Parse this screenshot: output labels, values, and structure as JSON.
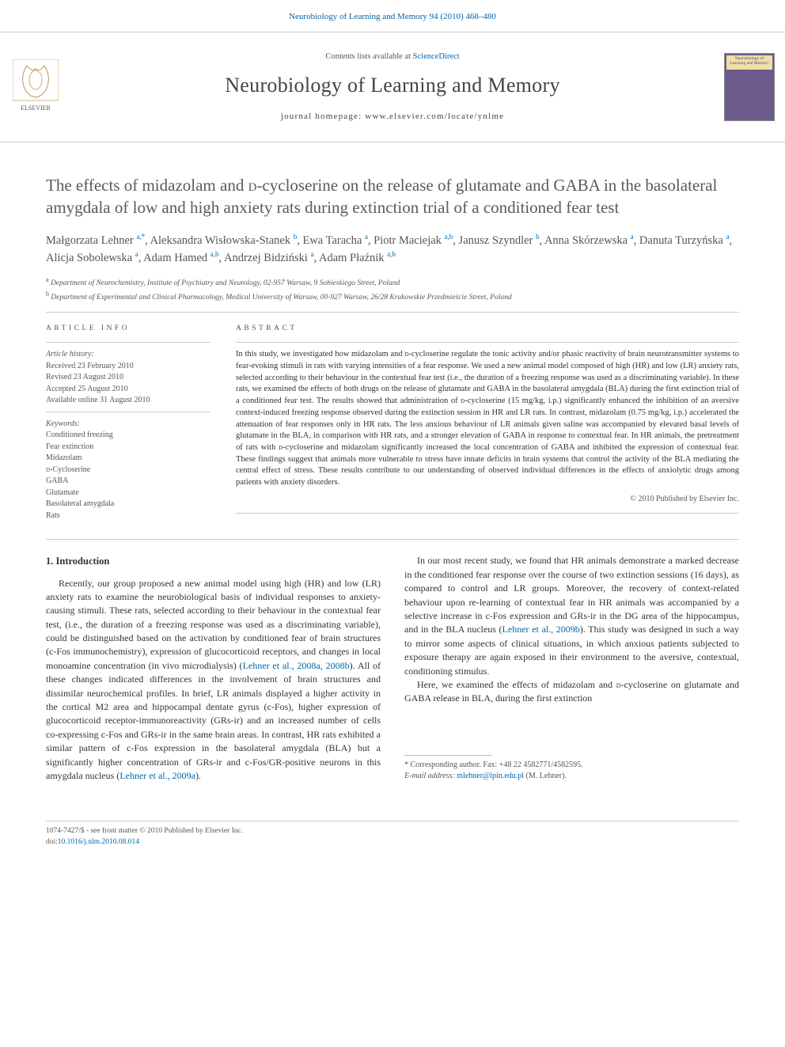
{
  "citation": "Neurobiology of Learning and Memory 94 (2010) 468–480",
  "banner": {
    "contents_prefix": "Contents lists available at ",
    "contents_link": "ScienceDirect",
    "journal": "Neurobiology of Learning and Memory",
    "homepage": "journal homepage: www.elsevier.com/locate/ynlme",
    "cover_text": "Neurobiology of Learning and Memory"
  },
  "title": "The effects of midazolam and D-cycloserine on the release of glutamate and GABA in the basolateral amygdala of low and high anxiety rats during extinction trial of a conditioned fear test",
  "authors_html": "Małgorzata Lehner <sup>a,*</sup>, Aleksandra Wisłowska-Stanek <sup>b</sup>, Ewa Taracha <sup>a</sup>, Piotr Maciejak <sup>a,b</sup>, Janusz Szyndler <sup>b</sup>, Anna Skórzewska <sup>a</sup>, Danuta Turzyńska <sup>a</sup>, Alicja Sobolewska <sup>a</sup>, Adam Hamed <sup>a,b</sup>, Andrzej Bidziński <sup>a</sup>, Adam Płaźnik <sup>a,b</sup>",
  "affiliations": {
    "a": "Department of Neurochemistry, Institute of Psychiatry and Neurology, 02-957 Warsaw, 9 Sobieskiego Street, Poland",
    "b": "Department of Experimental and Clinical Pharmacology, Medical University of Warsaw, 00-927 Warsaw, 26/28 Krakowskie Przedmieście Street, Poland"
  },
  "article_info": {
    "heading": "ARTICLE INFO",
    "history_label": "Article history:",
    "history": [
      "Received 23 February 2010",
      "Revised 23 August 2010",
      "Accepted 25 August 2010",
      "Available online 31 August 2010"
    ],
    "keywords_label": "Keywords:",
    "keywords": [
      "Conditioned freezing",
      "Fear extinction",
      "Midazolam",
      "D-Cycloserine",
      "GABA",
      "Glutamate",
      "Basolateral amygdala",
      "Rats"
    ]
  },
  "abstract": {
    "heading": "ABSTRACT",
    "text": "In this study, we investigated how midazolam and D-cycloserine regulate the tonic activity and/or phasic reactivity of brain neurotransmitter systems to fear-evoking stimuli in rats with varying intensities of a fear response. We used a new animal model composed of high (HR) and low (LR) anxiety rats, selected according to their behaviour in the contextual fear test (i.e., the duration of a freezing response was used as a discriminating variable). In these rats, we examined the effects of both drugs on the release of glutamate and GABA in the basolateral amygdala (BLA) during the first extinction trial of a conditioned fear test. The results showed that administration of D-cycloserine (15 mg/kg, i.p.) significantly enhanced the inhibition of an aversive context-induced freezing response observed during the extinction session in HR and LR rats. In contrast, midazolam (0.75 mg/kg, i.p.) accelerated the attenuation of fear responses only in HR rats. The less anxious behaviour of LR animals given saline was accompanied by elevated basal levels of glutamate in the BLA, in comparison with HR rats, and a stronger elevation of GABA in response to contextual fear. In HR animals, the pretreatment of rats with D-cycloserine and midazolam significantly increased the local concentration of GABA and inhibited the expression of contextual fear. These findings suggest that animals more vulnerable to stress have innate deficits in brain systems that control the activity of the BLA mediating the central effect of stress. These results contribute to our understanding of observed individual differences in the effects of anxiolytic drugs among patients with anxiety disorders.",
    "copyright": "© 2010 Published by Elsevier Inc."
  },
  "body": {
    "h1": "1. Introduction",
    "p1": "Recently, our group proposed a new animal model using high (HR) and low (LR) anxiety rats to examine the neurobiological basis of individual responses to anxiety-causing stimuli. These rats, selected according to their behaviour in the contextual fear test, (i.e., the duration of a freezing response was used as a discriminating variable), could be distinguished based on the activation by conditioned fear of brain structures (c-Fos immunochemistry), expression of glucocorticoid receptors, and changes in local monoamine concentration (in vivo microdialysis) (",
    "p1_cite": "Lehner et al., 2008a, 2008b",
    "p1_tail": "). All of these changes indicated differences in the involvement of brain structures and dissimilar neurochemical profiles. In brief, LR animals displayed a higher activity in the cortical M2 area and hippocampal dentate gyrus (c-Fos), higher expression of gluco",
    "p2_top": "corticoid receptor-immunoreactivity (GRs-ir) and an increased number of cells co-expressing c-Fos and GRs-ir in the same brain areas. In contrast, HR rats exhibited a similar pattern of c-Fos expression in the basolateral amygdala (BLA) but a significantly higher concentration of GRs-ir and c-Fos/GR-positive neurons in this amygdala nucleus (",
    "p2_cite": "Lehner et al., 2009a",
    "p2_tail": ").",
    "p3": "In our most recent study, we found that HR animals demonstrate a marked decrease in the conditioned fear response over the course of two extinction sessions (16 days), as compared to control and LR groups. Moreover, the recovery of context-related behaviour upon re-learning of contextual fear in HR animals was accompanied by a selective increase in c-Fos expression and GRs-ir in the DG area of the hippocampus, and in the BLA nucleus (",
    "p3_cite": "Lehner et al., 2009b",
    "p3_tail": "). This study was designed in such a way to mirror some aspects of clinical situations, in which anxious patients subjected to exposure therapy are again exposed in their environment to the aversive, contextual, conditioning stimulus.",
    "p4": "Here, we examined the effects of midazolam and D-cycloserine on glutamate and GABA release in BLA, during the first extinction"
  },
  "footnote": {
    "corr": "* Corresponding author. Fax: +48 22 4582771/4582595.",
    "email_label": "E-mail address:",
    "email": "mlehner@ipin.edu.pl",
    "email_tail": "(M. Lehner)."
  },
  "footer": {
    "issn": "1074-7427/$ - see front matter © 2010 Published by Elsevier Inc.",
    "doi_label": "doi:",
    "doi": "10.1016/j.nlm.2010.08.014"
  },
  "colors": {
    "link": "#0066aa",
    "text": "#333333",
    "muted": "#555555",
    "rule": "#cccccc",
    "cover_bg": "#6b5a8c",
    "cover_band": "#efe0a5"
  },
  "font_sizes_pt": {
    "title": 16,
    "journal": 20,
    "body": 9,
    "abstract": 8,
    "info": 7.5
  }
}
